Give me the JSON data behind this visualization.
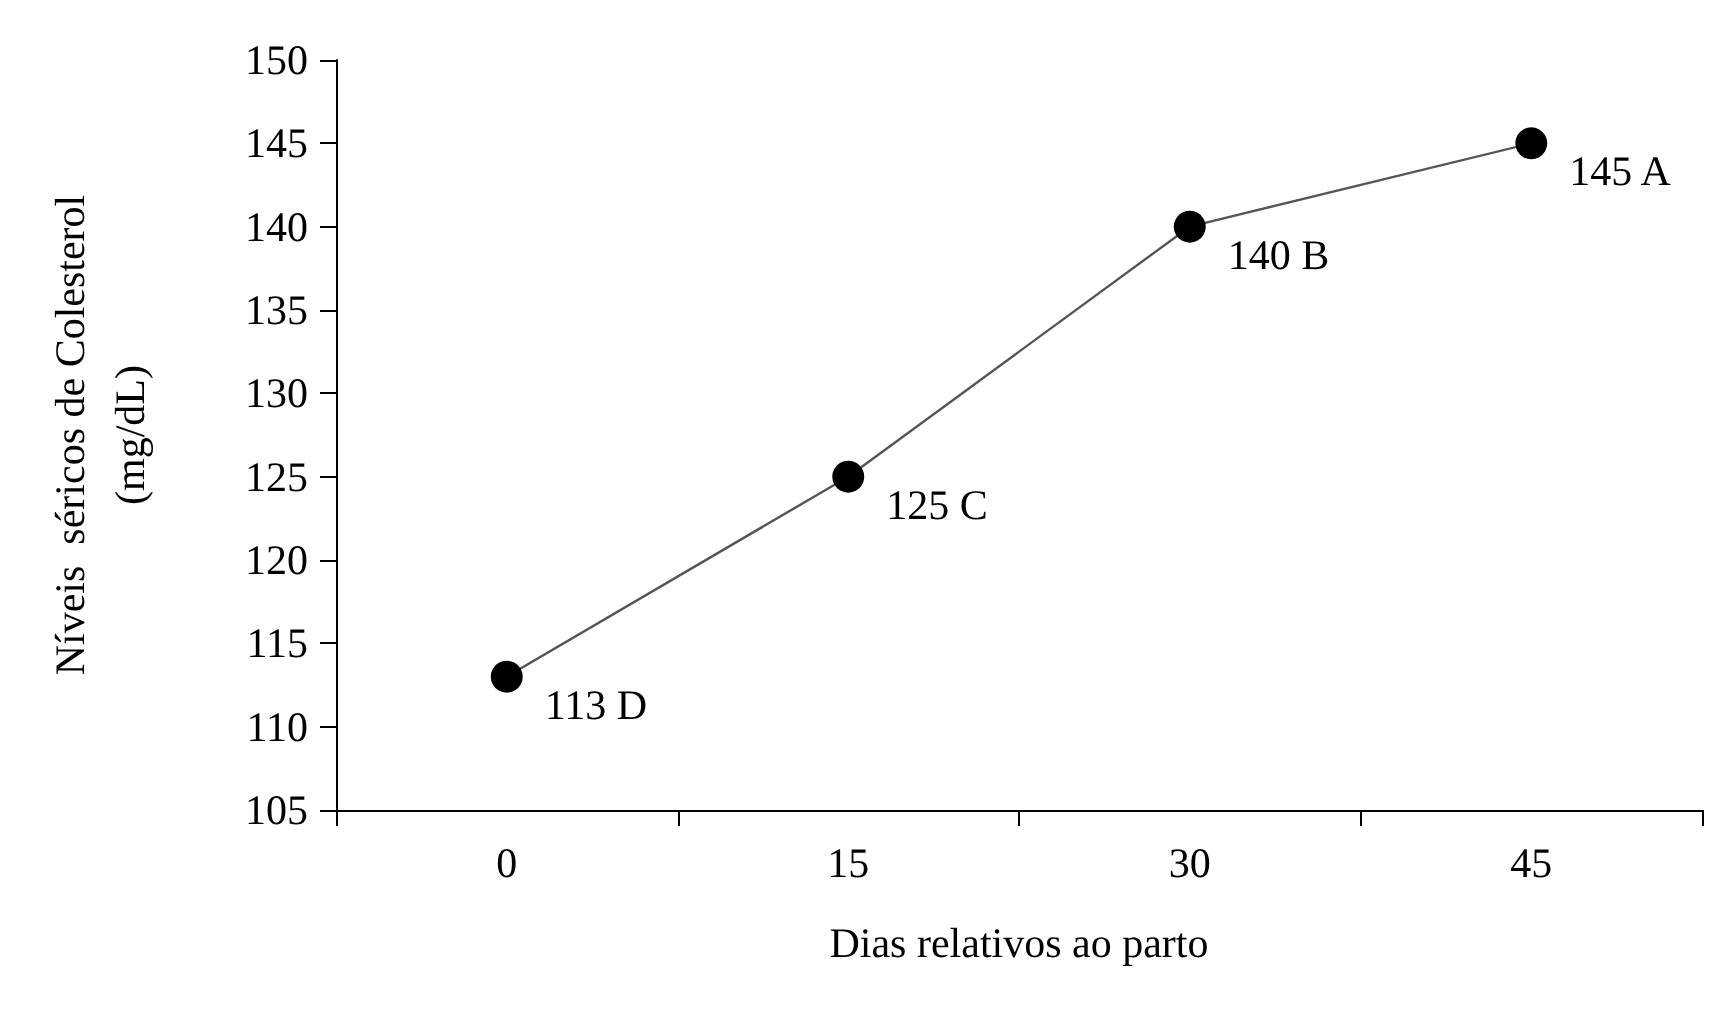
{
  "chart_data": {
    "type": "line",
    "xlabel": "Dias relativos ao parto",
    "ylabel": "Níveis  séricos de Colesterol\n(mg/dL)",
    "categories": [
      "0",
      "15",
      "30",
      "45"
    ],
    "series": [
      {
        "color": "#000000",
        "values": [
          113,
          125,
          140,
          145
        ],
        "value_labels": [
          "113 D",
          "125 C",
          "140 B",
          "145 A"
        ]
      }
    ],
    "ylim": [
      105,
      150
    ],
    "yticks": [
      105,
      110,
      115,
      120,
      125,
      130,
      135,
      140,
      145,
      150
    ],
    "grid": false,
    "marker": "circle",
    "line_style": "solid"
  }
}
